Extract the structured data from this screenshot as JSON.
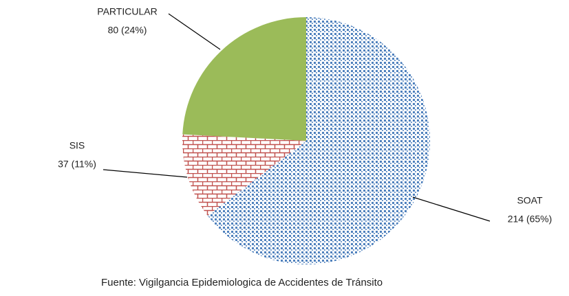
{
  "chart_data": {
    "type": "pie",
    "categories": [
      "SOAT",
      "SIS",
      "PARTICULAR"
    ],
    "values": [
      214,
      37,
      80
    ],
    "value_labels": [
      "214 (65%)",
      "37 (11%)",
      "80 (24%)"
    ],
    "colors": [
      "#4f81bd",
      "#c0504d",
      "#9bbb59"
    ],
    "patterns": [
      "dotted",
      "brick",
      "solid"
    ],
    "source": "Fuente: Vigilgancia Epidemiologica de Accidentes de  Tránsito"
  }
}
